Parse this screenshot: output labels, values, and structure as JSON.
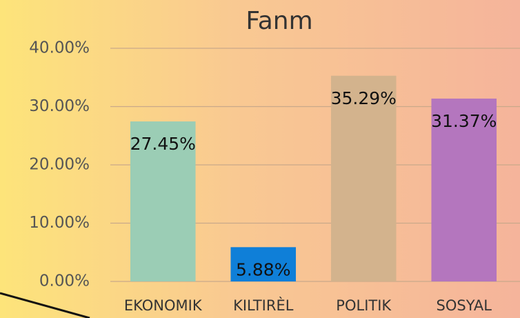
{
  "chart_data": {
    "type": "bar",
    "title": "Fanm",
    "categories": [
      "EKONOMIK",
      "KILTIRÈL",
      "POLITIK",
      "SOSYAL"
    ],
    "values": [
      27.45,
      5.88,
      35.29,
      31.37
    ],
    "value_labels": [
      "27.45%",
      "5.88%",
      "35.29%",
      "31.37%"
    ],
    "colors": [
      "#9bcdb5",
      "#0f7fd8",
      "#d3b38d",
      "#b476be"
    ],
    "ylim": [
      0,
      40
    ],
    "yticks": [
      {
        "value": 0,
        "label": "0.00%"
      },
      {
        "value": 10,
        "label": "10.00%"
      },
      {
        "value": 20,
        "label": "20.00%"
      },
      {
        "value": 30,
        "label": "30.00%"
      },
      {
        "value": 40,
        "label": "40.00%"
      }
    ],
    "grid": true
  }
}
